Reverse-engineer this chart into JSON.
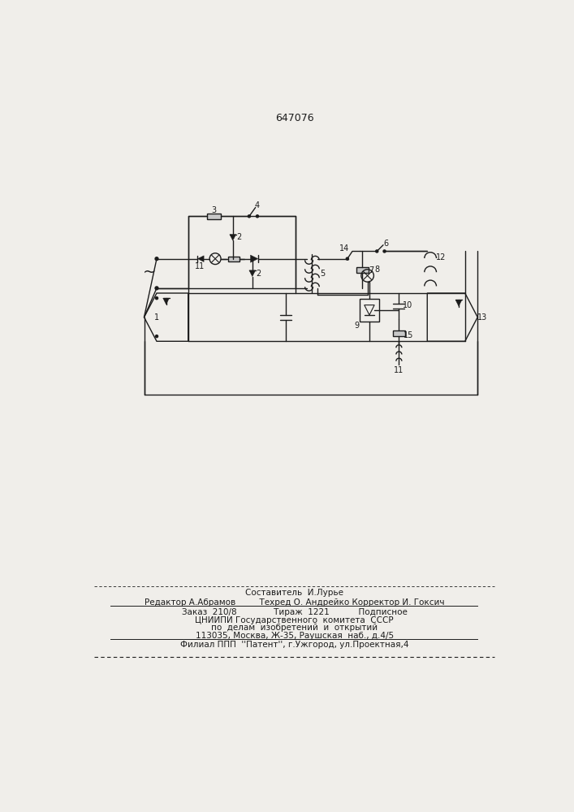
{
  "title": "647076",
  "bg_color": "#f0eeea",
  "line_color": "#1c1c1c",
  "footer": {
    "line1": "Составитель  И.Лурье",
    "line2": "Редактор А.Абрамов         Техред О. Андрейко Корректор И. Гоксич",
    "line3": "Заказ  210/8              Тираж  1221           Подписное",
    "line4": "ЦНИИПИ Государственного  комитета  СССР",
    "line5": "по  делам  изобретений  и  открытий",
    "line6": "113035, Москва, Ж-35, Раушская  наб., д.4/5",
    "line7": "Филиал ППП  ''Патент'', г.Ужгород, ул.Проектная,4"
  }
}
